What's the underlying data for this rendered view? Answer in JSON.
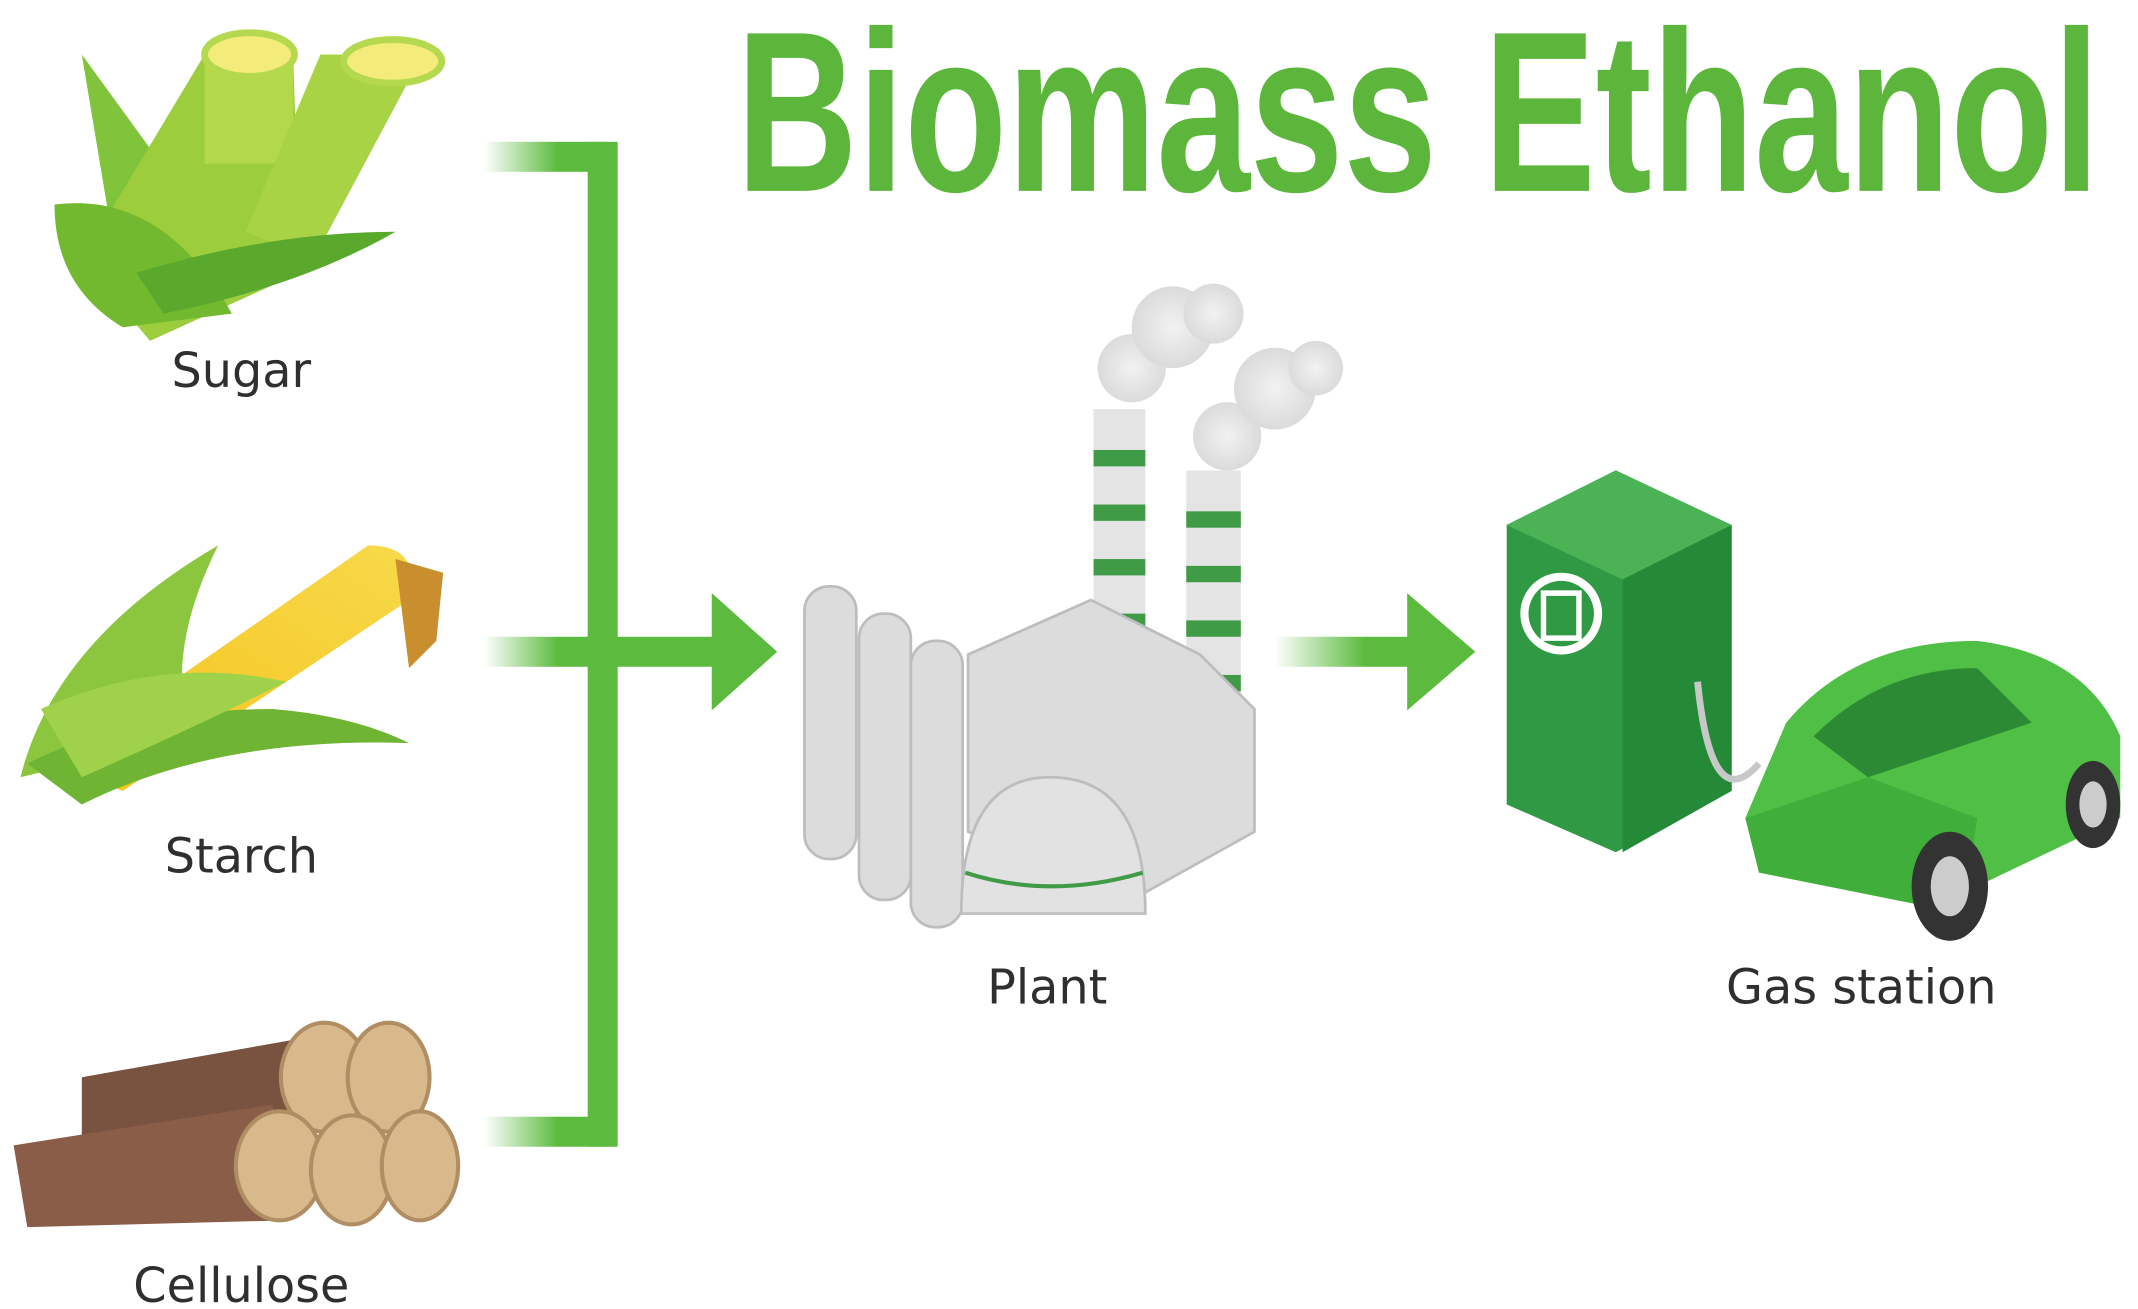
{
  "header": {
    "title": "Biomass Ethanol"
  },
  "nodes": [
    {
      "label": "Sugar"
    },
    {
      "label": "Starch"
    },
    {
      "label": "Cellulose"
    },
    {
      "label": "Plant"
    },
    {
      "label": "Gas station"
    }
  ]
}
